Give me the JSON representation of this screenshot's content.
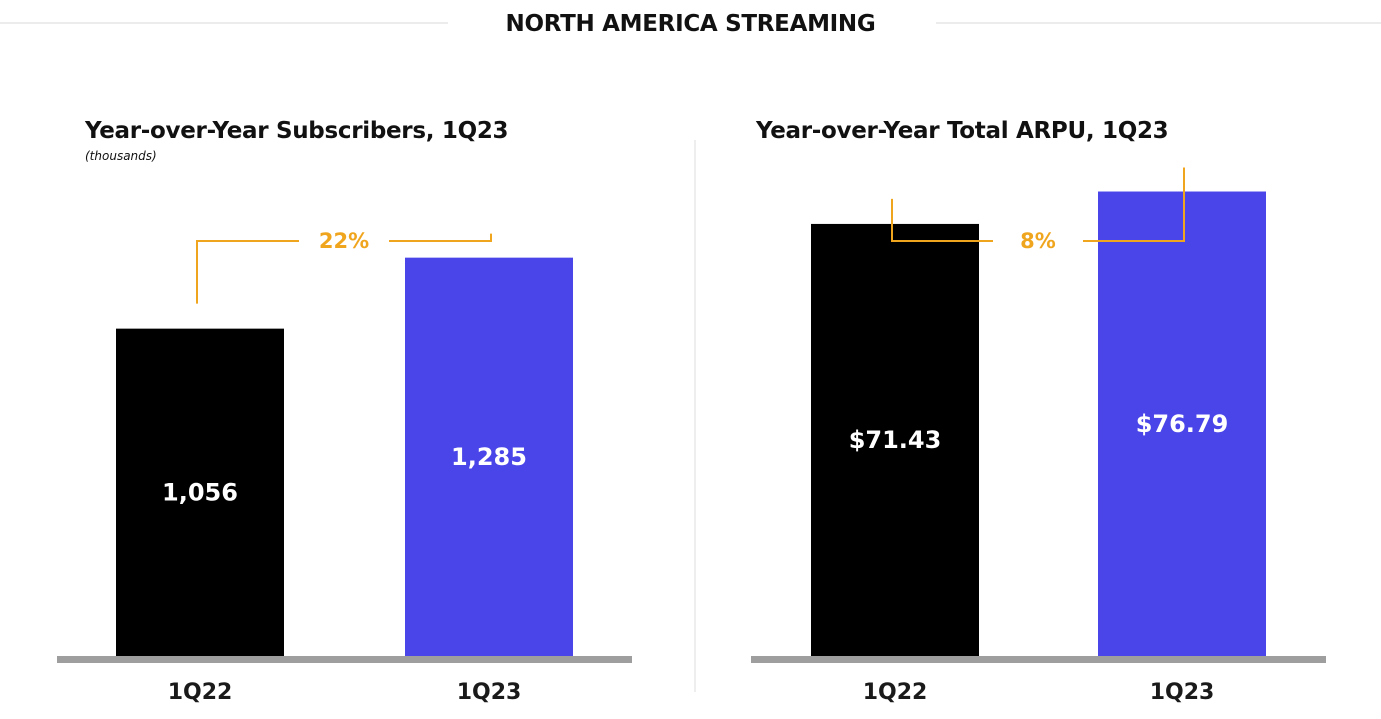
{
  "page": {
    "title": "NORTH AMERICA STREAMING"
  },
  "colors": {
    "accent": "#F0A51E",
    "bar_prior": "#000000",
    "bar_current": "#4A45E8",
    "baseline": "#9e9e9e"
  },
  "chart_data": [
    {
      "type": "bar",
      "title": "Year-over-Year Subscribers, 1Q23",
      "subtitle": "(thousands)",
      "categories": [
        "1Q22",
        "1Q23"
      ],
      "values": [
        1056,
        1285
      ],
      "value_labels": [
        "1,056",
        "1,285"
      ],
      "growth_label": "22%",
      "xlabel": "",
      "ylabel": "",
      "ylim": [
        0,
        1600
      ],
      "grid": false
    },
    {
      "type": "bar",
      "title": "Year-over-Year Total ARPU, 1Q23",
      "subtitle": "",
      "categories": [
        "1Q22",
        "1Q23"
      ],
      "values": [
        71.43,
        76.79
      ],
      "value_labels": [
        "$71.43",
        "$76.79"
      ],
      "growth_label": "8%",
      "xlabel": "",
      "ylabel": "",
      "ylim": [
        0,
        82
      ],
      "grid": false
    }
  ]
}
